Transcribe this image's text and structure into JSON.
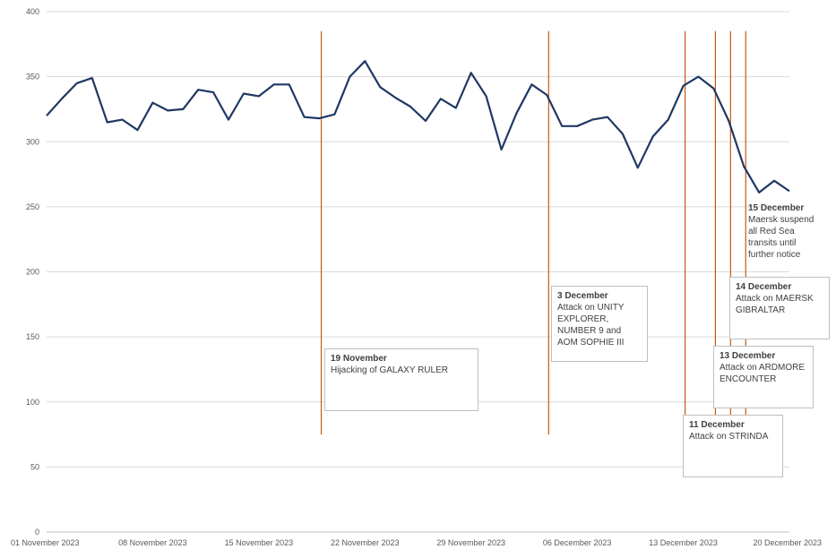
{
  "chart_data": {
    "type": "line",
    "ylim": [
      0,
      400
    ],
    "yticks": [
      0,
      50,
      100,
      150,
      200,
      250,
      300,
      350,
      400
    ],
    "xlim": [
      "2023-11-01",
      "2023-12-20"
    ],
    "xticks": [
      {
        "date": "2023-11-01",
        "label": "01 November 2023"
      },
      {
        "date": "2023-11-08",
        "label": "08 November 2023"
      },
      {
        "date": "2023-11-15",
        "label": "15 November 2023"
      },
      {
        "date": "2023-11-22",
        "label": "22 November 2023"
      },
      {
        "date": "2023-11-29",
        "label": "29 November 2023"
      },
      {
        "date": "2023-12-06",
        "label": "06 December 2023"
      },
      {
        "date": "2023-12-13",
        "label": "13 December 2023"
      },
      {
        "date": "2023-12-20",
        "label": "20 December 2023"
      }
    ],
    "grid": "horizontal",
    "line_color": "#1f3864",
    "event_line_color": "#c55a11",
    "series": [
      {
        "x": [
          "2023-11-01",
          "2023-11-02",
          "2023-11-03",
          "2023-11-04",
          "2023-11-05",
          "2023-11-06",
          "2023-11-07",
          "2023-11-08",
          "2023-11-09",
          "2023-11-10",
          "2023-11-11",
          "2023-11-12",
          "2023-11-13",
          "2023-11-14",
          "2023-11-15",
          "2023-11-16",
          "2023-11-17",
          "2023-11-18",
          "2023-11-19",
          "2023-11-20",
          "2023-11-21",
          "2023-11-22",
          "2023-11-23",
          "2023-11-24",
          "2023-11-25",
          "2023-11-26",
          "2023-11-27",
          "2023-11-28",
          "2023-11-29",
          "2023-11-30",
          "2023-12-01",
          "2023-12-02",
          "2023-12-03",
          "2023-12-04",
          "2023-12-05",
          "2023-12-06",
          "2023-12-07",
          "2023-12-08",
          "2023-12-09",
          "2023-12-10",
          "2023-12-11",
          "2023-12-12",
          "2023-12-13",
          "2023-12-14",
          "2023-12-15",
          "2023-12-16",
          "2023-12-17",
          "2023-12-18",
          "2023-12-19",
          "2023-12-20"
        ],
        "values": [
          320,
          333,
          345,
          349,
          315,
          317,
          309,
          330,
          324,
          325,
          340,
          338,
          317,
          337,
          335,
          344,
          344,
          319,
          318,
          321,
          350,
          362,
          342,
          334,
          327,
          316,
          333,
          326,
          353,
          335,
          294,
          322,
          344,
          336,
          312,
          312,
          317,
          319,
          306,
          280,
          304,
          317,
          343,
          350,
          341,
          316,
          281,
          261,
          270,
          262
        ]
      }
    ],
    "events": [
      {
        "date": "2023-11-19",
        "label_date": "19 November",
        "text": "Hijacking of GALAXY RULER"
      },
      {
        "date": "2023-12-04",
        "label_date": "3 December",
        "text": "Attack on UNITY\nEXPLORER,\nNUMBER 9 and\nAOM SOPHIE III"
      },
      {
        "date": "2023-12-13",
        "label_date": "11 December",
        "text": "Attack on STRINDA"
      },
      {
        "date": "2023-12-15",
        "label_date": "13 December",
        "text": "Attack on ARDMORE\nENCOUNTER"
      },
      {
        "date": "2023-12-16",
        "label_date": "14 December",
        "text": "Attack on MAERSK\nGIBRALTAR"
      },
      {
        "date": "2023-12-17",
        "label_date": "15 December",
        "text": "Maersk suspend\nall Red Sea\ntransits until\nfurther notice"
      }
    ]
  }
}
